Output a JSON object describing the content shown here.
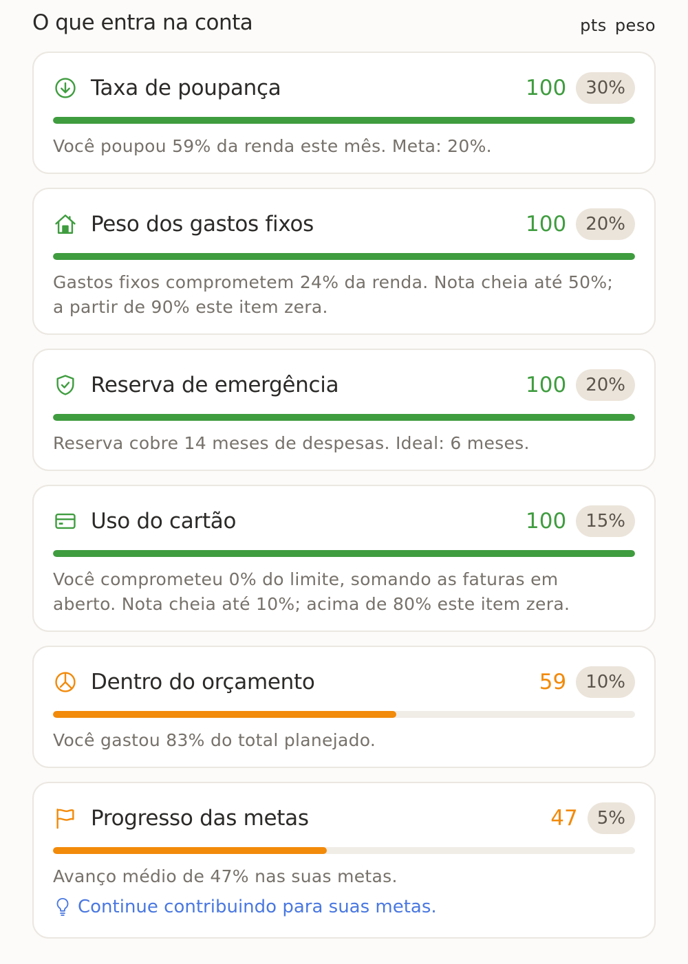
{
  "header": {
    "title": "O que entra na conta",
    "col_pts": "pts",
    "col_peso": "peso"
  },
  "colors": {
    "green": "#3f9c3f",
    "orange": "#f28a0a",
    "blue": "#4a78e0"
  },
  "items": [
    {
      "icon": "download-circle-icon",
      "title": "Taxa de poupança",
      "score": "100",
      "weight": "30%",
      "progress": 1.0,
      "status": "green",
      "description": "Você poupou 59% da renda este mês. Meta: 20%."
    },
    {
      "icon": "house-icon",
      "title": "Peso dos gastos fixos",
      "score": "100",
      "weight": "20%",
      "progress": 1.0,
      "status": "green",
      "description": "Gastos fixos comprometem 24% da renda. Nota cheia até 50%; a partir de 90% este item zera."
    },
    {
      "icon": "shield-check-icon",
      "title": "Reserva de emergência",
      "score": "100",
      "weight": "20%",
      "progress": 1.0,
      "status": "green",
      "description": "Reserva cobre 14 meses de despesas. Ideal: 6 meses."
    },
    {
      "icon": "credit-card-icon",
      "title": "Uso do cartão",
      "score": "100",
      "weight": "15%",
      "progress": 1.0,
      "status": "green",
      "description": "Você comprometeu 0% do limite, somando as faturas em aberto. Nota cheia até 10%; acima de 80% este item zera."
    },
    {
      "icon": "pie-chart-icon",
      "title": "Dentro do orçamento",
      "score": "59",
      "weight": "10%",
      "progress": 0.59,
      "status": "orange",
      "description": "Você gastou 83% do total planejado."
    },
    {
      "icon": "flag-icon",
      "title": "Progresso das metas",
      "score": "47",
      "weight": "5%",
      "progress": 0.47,
      "status": "orange",
      "description": "Avanço médio de 47% nas suas metas.",
      "tip": {
        "icon": "lightbulb-icon",
        "text": "Continue contribuindo para suas metas."
      }
    }
  ]
}
